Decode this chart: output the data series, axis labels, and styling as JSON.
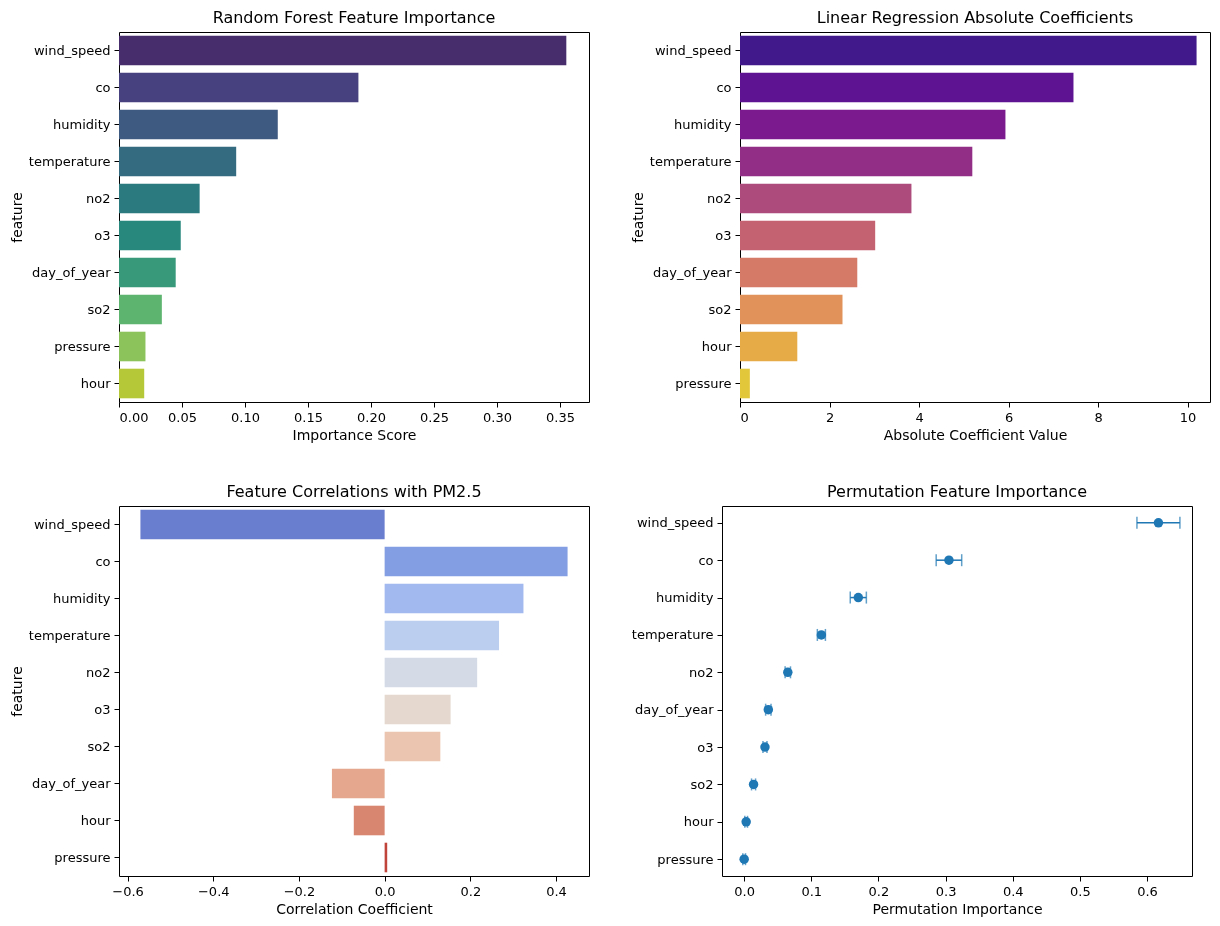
{
  "chart_data": [
    {
      "type": "bar",
      "orientation": "horizontal",
      "title": "Random Forest Feature Importance",
      "xlabel": "Importance Score",
      "ylabel": "feature",
      "categories": [
        "wind_speed",
        "co",
        "humidity",
        "temperature",
        "no2",
        "o3",
        "day_of_year",
        "so2",
        "pressure",
        "hour"
      ],
      "values": [
        0.355,
        0.19,
        0.126,
        0.093,
        0.064,
        0.049,
        0.045,
        0.034,
        0.021,
        0.02
      ],
      "colors": [
        "#472d6b",
        "#48417f",
        "#3f5a80",
        "#346b80",
        "#2b7a80",
        "#28887d",
        "#38997a",
        "#5cb46f",
        "#8cc35a",
        "#b5c938"
      ],
      "xlim": [
        0,
        0.373
      ],
      "xticks": [
        {
          "value": 0,
          "label": "0.00"
        },
        0.05,
        {
          "value": 0.1,
          "label": "0.10"
        },
        0.15,
        {
          "value": 0.2,
          "label": "0.20"
        },
        0.25,
        {
          "value": 0.3,
          "label": "0.30"
        },
        0.35
      ],
      "grid": false
    },
    {
      "type": "bar",
      "orientation": "horizontal",
      "title": "Linear Regression Absolute Coefficients",
      "xlabel": "Absolute Coefficient Value",
      "ylabel": "feature",
      "categories": [
        "wind_speed",
        "co",
        "humidity",
        "temperature",
        "no2",
        "o3",
        "day_of_year",
        "so2",
        "hour",
        "pressure"
      ],
      "values": [
        10.2,
        7.45,
        5.93,
        5.19,
        3.83,
        3.02,
        2.62,
        2.29,
        1.28,
        0.22
      ],
      "colors": [
        "#41198a",
        "#5e1393",
        "#7b1a8e",
        "#922e85",
        "#ad4b7c",
        "#c56272",
        "#d67a68",
        "#e1925a",
        "#e6ab47",
        "#e3c73a"
      ],
      "xlim": [
        0,
        10.5
      ],
      "xticks": [
        0,
        2,
        4,
        6,
        8,
        10
      ],
      "grid": false
    },
    {
      "type": "bar",
      "orientation": "horizontal",
      "title": "Feature Correlations with PM2.5",
      "xlabel": "Correlation Coefficient",
      "ylabel": "feature",
      "categories": [
        "wind_speed",
        "co",
        "humidity",
        "temperature",
        "no2",
        "o3",
        "so2",
        "day_of_year",
        "hour",
        "pressure"
      ],
      "values": [
        -0.57,
        0.427,
        0.324,
        0.267,
        0.216,
        0.154,
        0.13,
        -0.123,
        -0.072,
        0.006
      ],
      "colors": [
        "#6a7ecf",
        "#839ee2",
        "#a2b9f0",
        "#bccef0",
        "#d4dbe6",
        "#e5d8cf",
        "#ecc5b0",
        "#e5a88e",
        "#d98670",
        "#c1443a"
      ],
      "xlim": [
        -0.62,
        0.477
      ],
      "xticks": [
        {
          "value": -0.6,
          "label": "−0.6"
        },
        {
          "value": -0.4,
          "label": "−0.4"
        },
        {
          "value": -0.2,
          "label": "−0.2"
        },
        {
          "value": 0,
          "label": "0.0"
        },
        0.2,
        0.4
      ],
      "grid": false
    },
    {
      "type": "scatter",
      "orientation": "horizontal",
      "title": "Permutation Feature Importance",
      "xlabel": "Permutation Importance",
      "categories": [
        "wind_speed",
        "co",
        "humidity",
        "temperature",
        "no2",
        "day_of_year",
        "o3",
        "so2",
        "hour",
        "pressure"
      ],
      "series": [
        {
          "color": "#1f77b4",
          "values": [
            0.617,
            0.305,
            0.17,
            0.115,
            0.065,
            0.036,
            0.031,
            0.014,
            0.003,
            0.0
          ],
          "errors": [
            0.032,
            0.019,
            0.012,
            0.006,
            0.004,
            0.004,
            0.003,
            0.003,
            0.002,
            0.002
          ]
        }
      ],
      "marker": "circle",
      "xlim": [
        -0.033,
        0.667
      ],
      "xticks": [
        {
          "value": 0,
          "label": "0.0"
        },
        0.1,
        0.2,
        0.3,
        0.4,
        0.5,
        0.6
      ],
      "grid": false
    }
  ]
}
